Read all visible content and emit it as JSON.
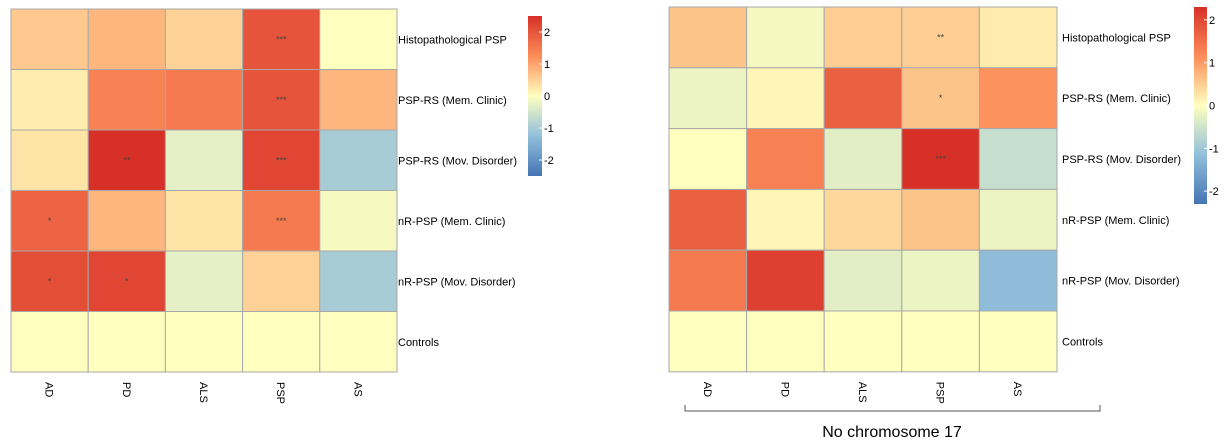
{
  "chart_data": [
    {
      "type": "heatmap",
      "rows": [
        "Histopathological PSP",
        "PSP-RS (Mem. Clinic)",
        "PSP-RS (Mov. Disorder)",
        "nR-PSP (Mem. Clinic)",
        "nR-PSP (Mov. Disorder)",
        "Controls"
      ],
      "columns": [
        "AD",
        "PD",
        "ALS",
        "PSP",
        "AS"
      ],
      "values": [
        [
          0.6,
          0.8,
          0.5,
          2.0,
          0.0
        ],
        [
          0.2,
          1.4,
          1.5,
          2.0,
          0.8
        ],
        [
          0.3,
          2.5,
          -0.3,
          2.2,
          -1.0
        ],
        [
          1.8,
          0.8,
          0.3,
          1.5,
          -0.1
        ],
        [
          2.1,
          2.2,
          -0.3,
          0.5,
          -1.0
        ],
        [
          0.0,
          0.0,
          0.0,
          0.0,
          0.0
        ]
      ],
      "significance": [
        [
          "",
          "",
          "",
          "***",
          ""
        ],
        [
          "",
          "",
          "",
          "***",
          ""
        ],
        [
          "",
          "**",
          "",
          "***",
          ""
        ],
        [
          "*",
          "",
          "",
          "***",
          ""
        ],
        [
          "*",
          "*",
          "",
          "",
          ""
        ],
        [
          "",
          "",
          "",
          "",
          ""
        ]
      ],
      "colorbar_ticks": [
        2,
        1,
        0,
        -1,
        -2
      ],
      "color_range": [
        -2.5,
        2.5
      ],
      "colors": {
        "low": "#4575b4",
        "mid": "#ffffbf",
        "high": "#d73027"
      }
    },
    {
      "type": "heatmap",
      "rows": [
        "Histopathological PSP",
        "PSP-RS (Mem. Clinic)",
        "PSP-RS (Mov. Disorder)",
        "nR-PSP (Mem. Clinic)",
        "nR-PSP (Mov. Disorder)",
        "Controls"
      ],
      "columns": [
        "AD",
        "PD",
        "ALS",
        "PSP",
        "AS"
      ],
      "values": [
        [
          0.6,
          -0.1,
          0.5,
          0.5,
          0.2
        ],
        [
          -0.2,
          0.1,
          1.7,
          0.6,
          1.1
        ],
        [
          0.0,
          1.3,
          -0.3,
          2.3,
          -0.6
        ],
        [
          1.7,
          0.1,
          0.4,
          0.6,
          -0.2
        ],
        [
          1.4,
          2.1,
          -0.3,
          -0.2,
          -1.2
        ],
        [
          0.0,
          0.0,
          0.0,
          0.0,
          0.0
        ]
      ],
      "significance": [
        [
          "",
          "",
          "",
          "**",
          ""
        ],
        [
          "",
          "",
          "",
          "*",
          ""
        ],
        [
          "",
          "",
          "",
          "***",
          ""
        ],
        [
          "",
          "",
          "",
          "",
          ""
        ],
        [
          "",
          "",
          "",
          "",
          ""
        ],
        [
          "",
          "",
          "",
          "",
          ""
        ]
      ],
      "colorbar_ticks": [
        2,
        1,
        0,
        -1,
        -2
      ],
      "color_range": [
        -2.3,
        2.3
      ],
      "colors": {
        "low": "#4575b4",
        "mid": "#ffffbf",
        "high": "#d73027"
      },
      "bracket_label": "No chromosome 17"
    }
  ]
}
